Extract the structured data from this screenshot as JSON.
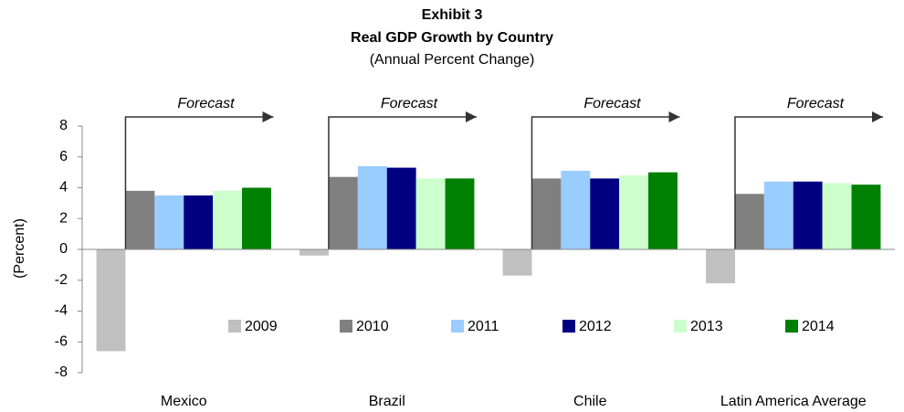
{
  "chart_data": {
    "type": "bar",
    "title": "Exhibit 3",
    "subtitle": "Real GDP Growth by Country",
    "subtitle2": "(Annual Percent Change)",
    "y_label": "(Percent)",
    "annotations": [
      "Forecast",
      "Forecast",
      "Forecast",
      "Forecast"
    ],
    "categories": [
      "Mexico",
      "Brazil",
      "Chile",
      "Latin America Average"
    ],
    "series": [
      {
        "name": "2009",
        "color": "#c0c0c0",
        "values": [
          -6.6,
          -0.4,
          -1.7,
          -2.2
        ]
      },
      {
        "name": "2010",
        "color": "#808080",
        "values": [
          3.8,
          4.7,
          4.6,
          3.6
        ]
      },
      {
        "name": "2011",
        "color": "#99ccff",
        "values": [
          3.5,
          5.4,
          5.1,
          4.4
        ]
      },
      {
        "name": "2012",
        "color": "#000080",
        "values": [
          3.5,
          5.3,
          4.6,
          4.4
        ]
      },
      {
        "name": "2013",
        "color": "#ccffcc",
        "values": [
          3.8,
          4.6,
          4.8,
          4.3
        ]
      },
      {
        "name": "2014",
        "color": "#008000",
        "values": [
          4.0,
          4.6,
          5.0,
          4.2
        ]
      }
    ],
    "ylim": [
      -8,
      8
    ],
    "yticks": [
      -8,
      -6,
      -4,
      -2,
      0,
      2,
      4,
      6,
      8
    ],
    "grid": false,
    "legend": "inside-bottom"
  }
}
